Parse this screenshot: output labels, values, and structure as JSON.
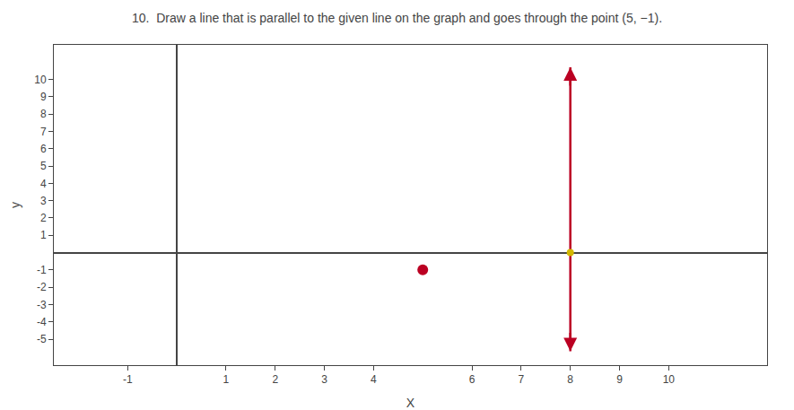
{
  "chart_data": {
    "type": "line",
    "title": "10.  Draw a line that is parallel to the given line on the graph and goes through the point (5, −1).",
    "xlabel": "X",
    "ylabel": "y",
    "xlim": [
      -2.5,
      12
    ],
    "ylim": [
      -6.5,
      12
    ],
    "xticks": [
      -1,
      1,
      2,
      3,
      4,
      6,
      7,
      8,
      9,
      10
    ],
    "yticks": [
      -5,
      -4,
      -3,
      -2,
      -1,
      1,
      2,
      3,
      4,
      5,
      6,
      7,
      8,
      9,
      10
    ],
    "grid": false,
    "series": [
      {
        "type": "line",
        "x": [
          8,
          8
        ],
        "values": [
          -5.7,
          10.7
        ],
        "color": "#bb0022",
        "line_style": "solid"
      },
      {
        "type": "scatter",
        "x": [
          8
        ],
        "values": [
          0
        ],
        "color": "#d4b800",
        "marker": "circle"
      },
      {
        "type": "scatter",
        "x": [
          5
        ],
        "values": [
          -1
        ],
        "color": "#bb0022",
        "marker": "circle"
      }
    ]
  }
}
